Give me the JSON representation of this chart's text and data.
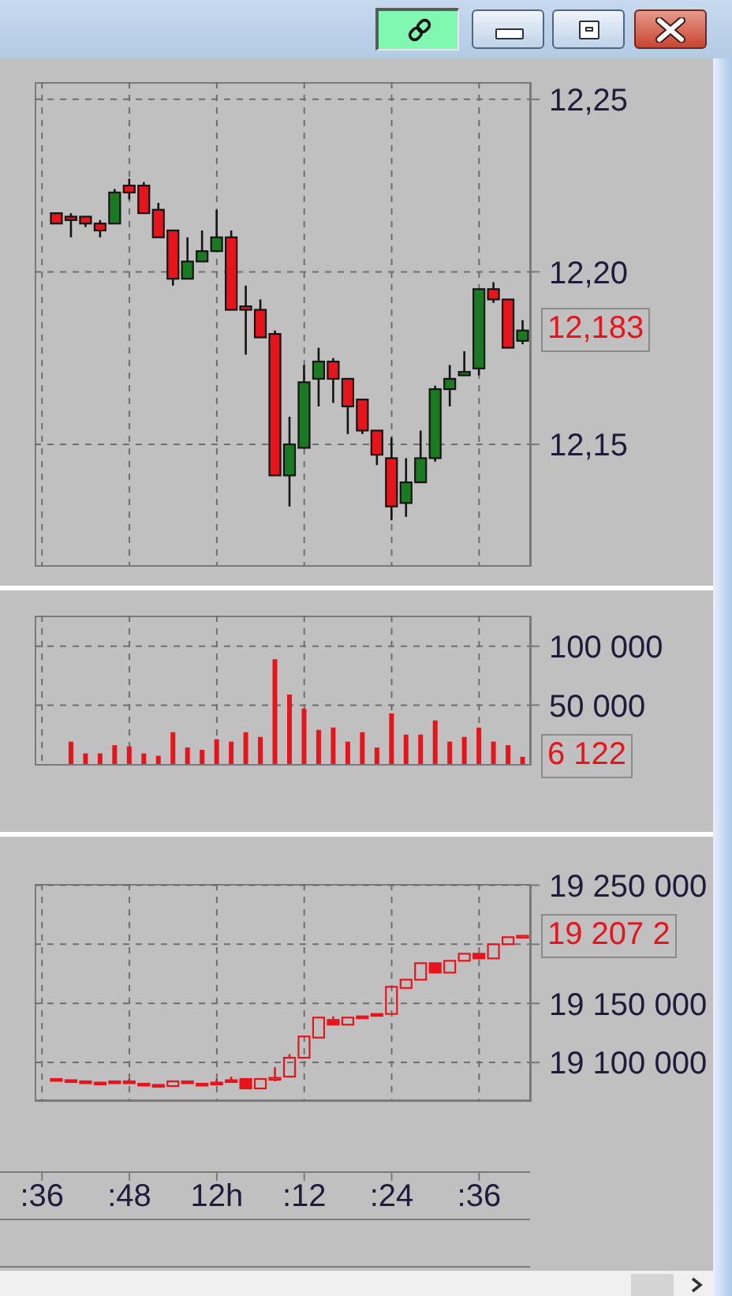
{
  "chart_data": [
    {
      "type": "candlestick",
      "categories": [
        null,
        null,
        null,
        null,
        null,
        null,
        null,
        null,
        null,
        null,
        null,
        null,
        null,
        null,
        null,
        null,
        null,
        null,
        null,
        null,
        null,
        null,
        null,
        null,
        null,
        null,
        null,
        null,
        null,
        null,
        null,
        null,
        null,
        null
      ],
      "ohlc": [
        null,
        [
          12.217,
          12.217,
          12.214,
          12.214
        ],
        [
          12.216,
          12.217,
          12.21,
          12.215
        ],
        [
          12.216,
          12.216,
          12.213,
          12.214
        ],
        [
          12.214,
          12.215,
          12.21,
          12.212
        ],
        [
          12.214,
          12.224,
          12.214,
          12.223
        ],
        [
          12.225,
          12.227,
          12.221,
          12.223
        ],
        [
          12.225,
          12.226,
          12.217,
          12.217
        ],
        [
          12.218,
          12.22,
          12.21,
          12.21
        ],
        [
          12.212,
          12.212,
          12.196,
          12.198
        ],
        [
          12.198,
          12.21,
          12.198,
          12.203
        ],
        [
          12.203,
          12.212,
          12.203,
          12.206
        ],
        [
          12.206,
          12.218,
          12.206,
          12.21
        ],
        [
          12.21,
          12.212,
          12.189,
          12.189
        ],
        [
          12.19,
          12.196,
          12.176,
          12.189
        ],
        [
          12.189,
          12.192,
          12.181,
          12.181
        ],
        [
          12.182,
          12.183,
          12.141,
          12.141
        ],
        [
          12.141,
          12.158,
          12.132,
          12.15
        ],
        [
          12.149,
          12.173,
          12.149,
          12.168
        ],
        [
          12.169,
          12.178,
          12.161,
          12.174
        ],
        [
          12.174,
          12.175,
          12.162,
          12.169
        ],
        [
          12.169,
          12.169,
          12.153,
          12.161
        ],
        [
          12.163,
          12.163,
          12.153,
          12.154
        ],
        [
          12.154,
          12.154,
          12.144,
          12.147
        ],
        [
          12.146,
          12.152,
          12.128,
          12.132
        ],
        [
          12.133,
          12.146,
          12.129,
          12.139
        ],
        [
          12.139,
          12.154,
          12.139,
          12.146
        ],
        [
          12.146,
          12.167,
          12.145,
          12.166
        ],
        [
          12.166,
          12.173,
          12.161,
          12.169
        ],
        [
          12.17,
          12.177,
          12.17,
          12.171
        ],
        [
          12.172,
          12.195,
          12.17,
          12.195
        ],
        [
          12.195,
          12.197,
          12.191,
          12.192
        ],
        [
          12.192,
          12.192,
          12.178,
          12.178
        ],
        [
          12.18,
          12.186,
          12.179,
          12.183
        ]
      ],
      "colors": [
        null,
        "#e8141c",
        "#e8141c",
        "#e8141c",
        "#e8141c",
        "#1a7a22",
        "#e8141c",
        "#e8141c",
        "#e8141c",
        "#e8141c",
        "#1a7a22",
        "#1a7a22",
        "#1a7a22",
        "#e8141c",
        "#e8141c",
        "#e8141c",
        "#e8141c",
        "#1a7a22",
        "#1a7a22",
        "#1a7a22",
        "#e8141c",
        "#e8141c",
        "#e8141c",
        "#e8141c",
        "#e8141c",
        "#1a7a22",
        "#1a7a22",
        "#1a7a22",
        "#1a7a22",
        "#1a7a22",
        "#1a7a22",
        "#e8141c",
        "#e8141c",
        "#1a7a22"
      ],
      "ylim": [
        12.115,
        12.255
      ],
      "yticks": [
        {
          "value": 12.15,
          "label": "12,15"
        },
        {
          "value": 12.2,
          "label": "12,20"
        },
        {
          "value": 12.25,
          "label": "12,25"
        }
      ],
      "grid": true,
      "tick_labels": "y",
      "annotations": [
        "12,183"
      ]
    },
    {
      "type": "bar",
      "categories": [
        null,
        null,
        null,
        null,
        null,
        null,
        null,
        null,
        null,
        null,
        null,
        null,
        null,
        null,
        null,
        null,
        null,
        null,
        null,
        null,
        null,
        null,
        null,
        null,
        null,
        null,
        null,
        null,
        null,
        null,
        null,
        null,
        null,
        null
      ],
      "values": [
        null,
        null,
        19000,
        9000,
        9000,
        16000,
        15000,
        9000,
        7000,
        27000,
        14000,
        12000,
        21000,
        19000,
        27000,
        23000,
        89000,
        59000,
        47000,
        29000,
        31000,
        19000,
        27000,
        14000,
        43000,
        25000,
        25000,
        37000,
        19000,
        23000,
        31000,
        19000,
        16000,
        6122
      ],
      "color": "#e8141c",
      "ylim": [
        0,
        126000
      ],
      "yticks": [
        {
          "value": 50000,
          "label": "50 000"
        },
        {
          "value": 100000,
          "label": "100 000"
        }
      ],
      "grid": true,
      "tick_labels": "y",
      "annotations": [
        "6 122"
      ]
    },
    {
      "type": "candlestick",
      "categories": [
        ":36",
        null,
        null,
        null,
        null,
        null,
        ":48",
        null,
        null,
        null,
        null,
        null,
        "12h",
        null,
        null,
        null,
        null,
        null,
        ":12",
        null,
        null,
        null,
        null,
        null,
        ":24",
        null,
        null,
        null,
        null,
        null,
        ":36",
        null,
        null,
        null
      ],
      "ohlc": [
        null,
        [
          19086000,
          19086000,
          19085000,
          19085000
        ],
        [
          19085000,
          19085000,
          19084000,
          19084000
        ],
        [
          19084000,
          19084000,
          19083000,
          19083000
        ],
        [
          19083000,
          19083000,
          19082000,
          19082000
        ],
        [
          19084000,
          19084000,
          19083000,
          19083000
        ],
        [
          19084000,
          19086000,
          19083000,
          19083000
        ],
        [
          19082000,
          19082000,
          19081000,
          19081000
        ],
        [
          19081000,
          19081000,
          19080000,
          19080000
        ],
        [
          19080000,
          19084000,
          19080000,
          19084000
        ],
        [
          19084000,
          19084000,
          19083000,
          19083000
        ],
        [
          19082000,
          19082000,
          19081000,
          19081000
        ],
        [
          19083000,
          19086000,
          19082000,
          19082000
        ],
        [
          19085000,
          19088000,
          19084000,
          19084000
        ],
        [
          19086000,
          19086000,
          19078000,
          19078000
        ],
        [
          19078000,
          19086000,
          19078000,
          19086000
        ],
        [
          19087000,
          19096000,
          19084000,
          19087000
        ],
        [
          19088000,
          19107000,
          19088000,
          19104000
        ],
        [
          19104000,
          19122000,
          19104000,
          19122000
        ],
        [
          19121000,
          19138000,
          19121000,
          19138000
        ],
        [
          19136000,
          19139000,
          19132000,
          19132000
        ],
        [
          19132000,
          19138000,
          19132000,
          19138000
        ],
        [
          19139000,
          19139000,
          19138000,
          19138000
        ],
        [
          19141000,
          19141000,
          19140000,
          19140000
        ],
        [
          19141000,
          19164000,
          19141000,
          19164000
        ],
        [
          19163000,
          19170000,
          19163000,
          19170000
        ],
        [
          19170000,
          19184000,
          19170000,
          19184000
        ],
        [
          19184000,
          19184000,
          19176000,
          19176000
        ],
        [
          19176000,
          19186000,
          19176000,
          19186000
        ],
        [
          19186000,
          19192000,
          19186000,
          19192000
        ],
        [
          19192000,
          19192000,
          19188000,
          19188000
        ],
        [
          19188000,
          19200000,
          19188000,
          19200000
        ],
        [
          19200000,
          19206000,
          19200000,
          19206000
        ],
        [
          19206000,
          19207200,
          19206000,
          19207200
        ]
      ],
      "color": "#e8141c",
      "ylim": [
        19068000,
        19251000
      ],
      "yticks": [
        {
          "value": 19100000,
          "label": "19 100 000"
        },
        {
          "value": 19150000,
          "label": "19 150 000"
        },
        {
          "value": 19200000,
          "label": null
        },
        {
          "value": 19250000,
          "label": "19 250 000"
        }
      ],
      "grid": true,
      "annotations": [
        "19 207 2"
      ]
    }
  ]
}
